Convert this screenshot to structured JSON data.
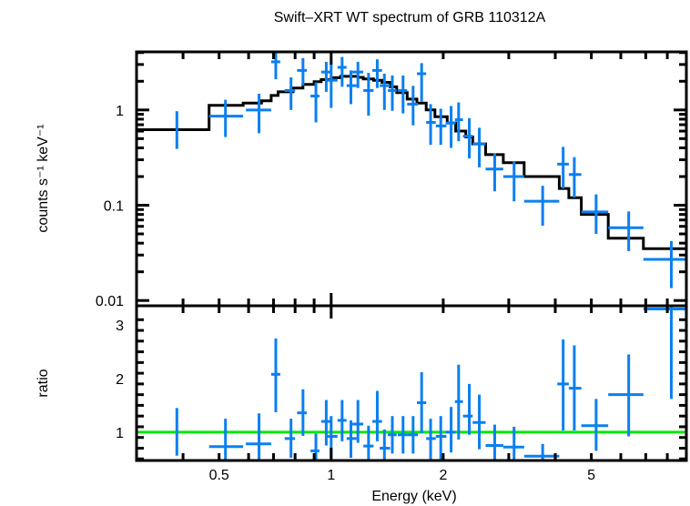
{
  "chart_data": [
    {
      "type": "scatter",
      "panel": "spectrum",
      "title": "Swift–XRT WT spectrum of GRB 110312A",
      "xlabel": "Energy (keV)",
      "ylabel": "counts s⁻¹ keV⁻¹",
      "xscale": "log",
      "yscale": "log",
      "xlim": [
        0.3,
        9.0
      ],
      "ylim": [
        0.0088,
        4.07
      ],
      "xticks": [
        {
          "v": 0.5,
          "label": "0.5"
        },
        {
          "v": 1,
          "label": "1"
        },
        {
          "v": 2,
          "label": "2"
        },
        {
          "v": 5,
          "label": "5"
        }
      ],
      "yticks": [
        {
          "v": 0.01,
          "label": "0.01"
        },
        {
          "v": 0.1,
          "label": "0.1"
        },
        {
          "v": 1,
          "label": "1"
        }
      ],
      "grid": false,
      "series": [
        {
          "name": "data",
          "color": "#0a7ff0",
          "points": [
            {
              "x": 0.385,
              "xlo": 0.385,
              "xhi": 0.385,
              "y": 0.62,
              "ylo": 0.39,
              "yhi": 0.97
            },
            {
              "x": 0.52,
              "xlo": 0.47,
              "xhi": 0.58,
              "y": 0.86,
              "ylo": 0.52,
              "yhi": 1.28
            },
            {
              "x": 0.64,
              "xlo": 0.59,
              "xhi": 0.69,
              "y": 1.0,
              "ylo": 0.57,
              "yhi": 1.48
            },
            {
              "x": 0.71,
              "xlo": 0.69,
              "xhi": 0.73,
              "y": 3.2,
              "ylo": 2.1,
              "yhi": 4.0
            },
            {
              "x": 0.78,
              "xlo": 0.75,
              "xhi": 0.8,
              "y": 1.6,
              "ylo": 1.0,
              "yhi": 2.2
            },
            {
              "x": 0.84,
              "xlo": 0.81,
              "xhi": 0.86,
              "y": 2.6,
              "ylo": 1.8,
              "yhi": 3.5
            },
            {
              "x": 0.91,
              "xlo": 0.88,
              "xhi": 0.93,
              "y": 1.4,
              "ylo": 0.74,
              "yhi": 1.95
            },
            {
              "x": 0.97,
              "xlo": 0.94,
              "xhi": 1.0,
              "y": 2.5,
              "ylo": 1.55,
              "yhi": 3.2
            },
            {
              "x": 1.0,
              "xlo": 0.97,
              "xhi": 1.04,
              "y": 2.05,
              "ylo": 1.05,
              "yhi": 3.1
            },
            {
              "x": 1.07,
              "xlo": 1.04,
              "xhi": 1.1,
              "y": 2.8,
              "ylo": 1.75,
              "yhi": 3.6
            },
            {
              "x": 1.13,
              "xlo": 1.1,
              "xhi": 1.17,
              "y": 1.8,
              "ylo": 1.15,
              "yhi": 2.6
            },
            {
              "x": 1.18,
              "xlo": 1.14,
              "xhi": 1.22,
              "y": 2.5,
              "ylo": 1.7,
              "yhi": 3.2
            },
            {
              "x": 1.26,
              "xlo": 1.22,
              "xhi": 1.3,
              "y": 1.6,
              "ylo": 0.87,
              "yhi": 2.45
            },
            {
              "x": 1.33,
              "xlo": 1.29,
              "xhi": 1.37,
              "y": 2.6,
              "ylo": 1.7,
              "yhi": 3.4
            },
            {
              "x": 1.39,
              "xlo": 1.35,
              "xhi": 1.44,
              "y": 1.8,
              "ylo": 1.0,
              "yhi": 2.4
            },
            {
              "x": 1.46,
              "xlo": 1.42,
              "xhi": 1.5,
              "y": 1.6,
              "ylo": 0.98,
              "yhi": 2.3
            },
            {
              "x": 1.56,
              "xlo": 1.51,
              "xhi": 1.6,
              "y": 1.6,
              "ylo": 0.92,
              "yhi": 2.3
            },
            {
              "x": 1.66,
              "xlo": 1.6,
              "xhi": 1.71,
              "y": 1.15,
              "ylo": 0.69,
              "yhi": 1.79
            },
            {
              "x": 1.75,
              "xlo": 1.7,
              "xhi": 1.8,
              "y": 2.4,
              "ylo": 1.23,
              "yhi": 3.1
            },
            {
              "x": 1.85,
              "xlo": 1.8,
              "xhi": 1.91,
              "y": 0.74,
              "ylo": 0.43,
              "yhi": 1.15
            },
            {
              "x": 1.97,
              "xlo": 1.91,
              "xhi": 2.04,
              "y": 0.68,
              "ylo": 0.43,
              "yhi": 1.03
            },
            {
              "x": 2.1,
              "xlo": 2.03,
              "xhi": 2.16,
              "y": 0.73,
              "ylo": 0.4,
              "yhi": 1.1
            },
            {
              "x": 2.2,
              "xlo": 2.15,
              "xhi": 2.26,
              "y": 0.79,
              "ylo": 0.47,
              "yhi": 1.2
            },
            {
              "x": 2.35,
              "xlo": 2.26,
              "xhi": 2.4,
              "y": 0.53,
              "ylo": 0.31,
              "yhi": 0.82
            },
            {
              "x": 2.5,
              "xlo": 2.4,
              "xhi": 2.6,
              "y": 0.44,
              "ylo": 0.25,
              "yhi": 0.65
            },
            {
              "x": 2.75,
              "xlo": 2.6,
              "xhi": 2.9,
              "y": 0.24,
              "ylo": 0.14,
              "yhi": 0.35
            },
            {
              "x": 3.1,
              "xlo": 2.9,
              "xhi": 3.3,
              "y": 0.2,
              "ylo": 0.11,
              "yhi": 0.29
            },
            {
              "x": 3.7,
              "xlo": 3.3,
              "xhi": 4.1,
              "y": 0.11,
              "ylo": 0.061,
              "yhi": 0.16
            },
            {
              "x": 4.2,
              "xlo": 4.05,
              "xhi": 4.35,
              "y": 0.27,
              "ylo": 0.15,
              "yhi": 0.41
            },
            {
              "x": 4.5,
              "xlo": 4.35,
              "xhi": 4.7,
              "y": 0.21,
              "ylo": 0.12,
              "yhi": 0.32
            },
            {
              "x": 5.15,
              "xlo": 4.7,
              "xhi": 5.55,
              "y": 0.085,
              "ylo": 0.05,
              "yhi": 0.13
            },
            {
              "x": 6.3,
              "xlo": 5.55,
              "xhi": 6.9,
              "y": 0.058,
              "ylo": 0.033,
              "yhi": 0.086
            },
            {
              "x": 8.2,
              "xlo": 6.9,
              "xhi": 9.0,
              "y": 0.027,
              "ylo": 0.0135,
              "yhi": 0.042
            }
          ]
        },
        {
          "name": "model",
          "color": "#000000",
          "type": "step",
          "edges": [
            0.3,
            0.47,
            0.58,
            0.65,
            0.69,
            0.72,
            0.79,
            0.84,
            0.9,
            0.94,
            1.0,
            1.06,
            1.18,
            1.22,
            1.3,
            1.37,
            1.44,
            1.5,
            1.6,
            1.7,
            1.8,
            1.9,
            2.05,
            2.16,
            2.3,
            2.4,
            2.6,
            2.9,
            3.3,
            4.1,
            4.35,
            4.7,
            5.55,
            6.9,
            9.0
          ],
          "values": [
            0.62,
            1.12,
            1.18,
            1.25,
            1.42,
            1.55,
            1.7,
            1.85,
            1.98,
            2.08,
            2.18,
            2.25,
            2.2,
            2.12,
            2.05,
            1.95,
            1.75,
            1.52,
            1.3,
            1.18,
            1.0,
            0.85,
            0.73,
            0.6,
            0.52,
            0.44,
            0.34,
            0.28,
            0.2,
            0.15,
            0.12,
            0.08,
            0.045,
            0.035,
            0.0
          ]
        }
      ]
    },
    {
      "type": "scatter",
      "panel": "ratio",
      "xlabel": "Energy (keV)",
      "ylabel": "ratio",
      "xscale": "log",
      "yscale": "linear",
      "xlim": [
        0.3,
        9.0
      ],
      "ylim": [
        0.47,
        3.36
      ],
      "xticks": [
        {
          "v": 0.5,
          "label": "0.5"
        },
        {
          "v": 1,
          "label": "1"
        },
        {
          "v": 2,
          "label": "2"
        },
        {
          "v": 5,
          "label": "5"
        }
      ],
      "yticks": [
        {
          "v": 1,
          "label": "1"
        },
        {
          "v": 2,
          "label": "2"
        },
        {
          "v": 3,
          "label": "3"
        }
      ],
      "grid": false,
      "reference_line": {
        "y": 1,
        "color": "#00e600"
      },
      "series": [
        {
          "name": "ratio",
          "color": "#0a7ff0",
          "points": [
            {
              "x": 0.385,
              "xlo": 0.385,
              "xhi": 0.385,
              "y": 1.0,
              "ylo": 0.56,
              "yhi": 1.45
            },
            {
              "x": 0.52,
              "xlo": 0.47,
              "xhi": 0.58,
              "y": 0.73,
              "ylo": 0.44,
              "yhi": 1.25
            },
            {
              "x": 0.64,
              "xlo": 0.59,
              "xhi": 0.69,
              "y": 0.78,
              "ylo": 0.44,
              "yhi": 1.35
            },
            {
              "x": 0.71,
              "xlo": 0.69,
              "xhi": 0.73,
              "y": 2.08,
              "ylo": 1.37,
              "yhi": 2.75
            },
            {
              "x": 0.78,
              "xlo": 0.75,
              "xhi": 0.8,
              "y": 0.88,
              "ylo": 0.52,
              "yhi": 1.25
            },
            {
              "x": 0.84,
              "xlo": 0.81,
              "xhi": 0.86,
              "y": 1.36,
              "ylo": 0.93,
              "yhi": 1.8
            },
            {
              "x": 0.91,
              "xlo": 0.88,
              "xhi": 0.93,
              "y": 0.65,
              "ylo": 0.34,
              "yhi": 0.97
            },
            {
              "x": 0.97,
              "xlo": 0.94,
              "xhi": 1.0,
              "y": 1.2,
              "ylo": 0.75,
              "yhi": 1.6
            },
            {
              "x": 1.0,
              "xlo": 0.97,
              "xhi": 1.04,
              "y": 0.92,
              "ylo": 0.52,
              "yhi": 1.3
            },
            {
              "x": 1.07,
              "xlo": 1.04,
              "xhi": 1.1,
              "y": 1.22,
              "ylo": 0.83,
              "yhi": 1.6
            },
            {
              "x": 1.13,
              "xlo": 1.1,
              "xhi": 1.17,
              "y": 0.88,
              "ylo": 0.52,
              "yhi": 1.22
            },
            {
              "x": 1.18,
              "xlo": 1.14,
              "xhi": 1.22,
              "y": 1.15,
              "ylo": 0.8,
              "yhi": 1.6
            },
            {
              "x": 1.26,
              "xlo": 1.22,
              "xhi": 1.3,
              "y": 0.74,
              "ylo": 0.38,
              "yhi": 1.12
            },
            {
              "x": 1.33,
              "xlo": 1.29,
              "xhi": 1.37,
              "y": 1.2,
              "ylo": 0.83,
              "yhi": 1.77
            },
            {
              "x": 1.39,
              "xlo": 1.35,
              "xhi": 1.44,
              "y": 0.7,
              "ylo": 0.38,
              "yhi": 1.05
            },
            {
              "x": 1.46,
              "xlo": 1.42,
              "xhi": 1.5,
              "y": 0.95,
              "ylo": 0.6,
              "yhi": 1.3
            },
            {
              "x": 1.56,
              "xlo": 1.51,
              "xhi": 1.6,
              "y": 0.95,
              "ylo": 0.6,
              "yhi": 1.3
            },
            {
              "x": 1.66,
              "xlo": 1.6,
              "xhi": 1.71,
              "y": 0.95,
              "ylo": 0.6,
              "yhi": 1.3
            },
            {
              "x": 1.75,
              "xlo": 1.7,
              "xhi": 1.8,
              "y": 1.55,
              "ylo": 0.98,
              "yhi": 2.12
            },
            {
              "x": 1.85,
              "xlo": 1.8,
              "xhi": 1.91,
              "y": 0.88,
              "ylo": 0.46,
              "yhi": 1.25
            },
            {
              "x": 1.97,
              "xlo": 1.91,
              "xhi": 2.04,
              "y": 0.92,
              "ylo": 0.46,
              "yhi": 1.3
            },
            {
              "x": 2.1,
              "xlo": 2.03,
              "xhi": 2.16,
              "y": 1.0,
              "ylo": 0.62,
              "yhi": 1.47
            },
            {
              "x": 2.2,
              "xlo": 2.15,
              "xhi": 2.26,
              "y": 1.57,
              "ylo": 0.86,
              "yhi": 2.26
            },
            {
              "x": 2.35,
              "xlo": 2.26,
              "xhi": 2.4,
              "y": 1.3,
              "ylo": 0.95,
              "yhi": 1.9
            },
            {
              "x": 2.5,
              "xlo": 2.4,
              "xhi": 2.6,
              "y": 1.18,
              "ylo": 0.68,
              "yhi": 1.7
            },
            {
              "x": 2.75,
              "xlo": 2.6,
              "xhi": 2.9,
              "y": 0.75,
              "ylo": 0.47,
              "yhi": 1.14
            },
            {
              "x": 3.1,
              "xlo": 2.9,
              "xhi": 3.3,
              "y": 0.72,
              "ylo": 0.47,
              "yhi": 1.1
            },
            {
              "x": 3.7,
              "xlo": 3.3,
              "xhi": 4.1,
              "y": 0.55,
              "ylo": 0.47,
              "yhi": 0.78
            },
            {
              "x": 4.2,
              "xlo": 4.05,
              "xhi": 4.35,
              "y": 1.9,
              "ylo": 1.03,
              "yhi": 2.73
            },
            {
              "x": 4.5,
              "xlo": 4.35,
              "xhi": 4.7,
              "y": 1.82,
              "ylo": 1.03,
              "yhi": 2.62
            },
            {
              "x": 5.15,
              "xlo": 4.7,
              "xhi": 5.55,
              "y": 1.12,
              "ylo": 0.65,
              "yhi": 1.62
            },
            {
              "x": 6.3,
              "xlo": 5.55,
              "xhi": 6.9,
              "y": 1.7,
              "ylo": 0.92,
              "yhi": 2.45
            },
            {
              "x": 8.2,
              "xlo": 6.9,
              "xhi": 9.0,
              "y": 3.3,
              "ylo": 1.62,
              "yhi": 3.36
            }
          ]
        }
      ]
    }
  ]
}
